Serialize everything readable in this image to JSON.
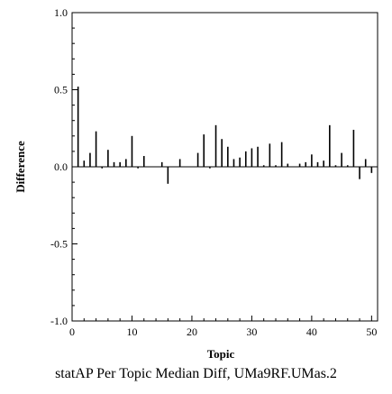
{
  "chart_data": {
    "type": "bar",
    "xlabel": "Topic",
    "ylabel": "Difference",
    "caption": "statAP Per Topic Median Diff, UMa9RF.UMas.2",
    "xlim": [
      0,
      51
    ],
    "ylim": [
      -1.0,
      1.0
    ],
    "x_ticks": [
      0,
      10,
      20,
      30,
      40,
      50
    ],
    "x_tick_labels": [
      "0",
      "10",
      "20",
      "30",
      "40",
      "50"
    ],
    "y_ticks": [
      1.0,
      0.5,
      0.0,
      -0.5,
      -1.0
    ],
    "y_tick_labels": [
      "1.0",
      "0.5",
      "0.0",
      "-0.5",
      "-1.0"
    ],
    "grid": false,
    "zero_line": true,
    "bar_color": "#000000",
    "x": [
      1,
      2,
      3,
      4,
      5,
      6,
      7,
      8,
      9,
      10,
      11,
      12,
      13,
      14,
      15,
      16,
      17,
      18,
      19,
      20,
      21,
      22,
      23,
      24,
      25,
      26,
      27,
      28,
      29,
      30,
      31,
      32,
      33,
      34,
      35,
      36,
      37,
      38,
      39,
      40,
      41,
      42,
      43,
      44,
      45,
      46,
      47,
      48,
      49,
      50
    ],
    "values": [
      0.52,
      0.04,
      0.09,
      0.23,
      -0.01,
      0.11,
      0.03,
      0.03,
      0.05,
      0.2,
      -0.01,
      0.07,
      0.0,
      0.0,
      0.03,
      -0.11,
      0.0,
      0.05,
      0.0,
      0.0,
      0.09,
      0.21,
      -0.01,
      0.27,
      0.18,
      0.13,
      0.05,
      0.06,
      0.1,
      0.12,
      0.13,
      0.01,
      0.15,
      0.01,
      0.16,
      0.02,
      0.0,
      0.02,
      0.03,
      0.08,
      0.03,
      0.04,
      0.27,
      0.01,
      0.09,
      0.01,
      0.24,
      -0.08,
      0.05,
      -0.04
    ]
  }
}
